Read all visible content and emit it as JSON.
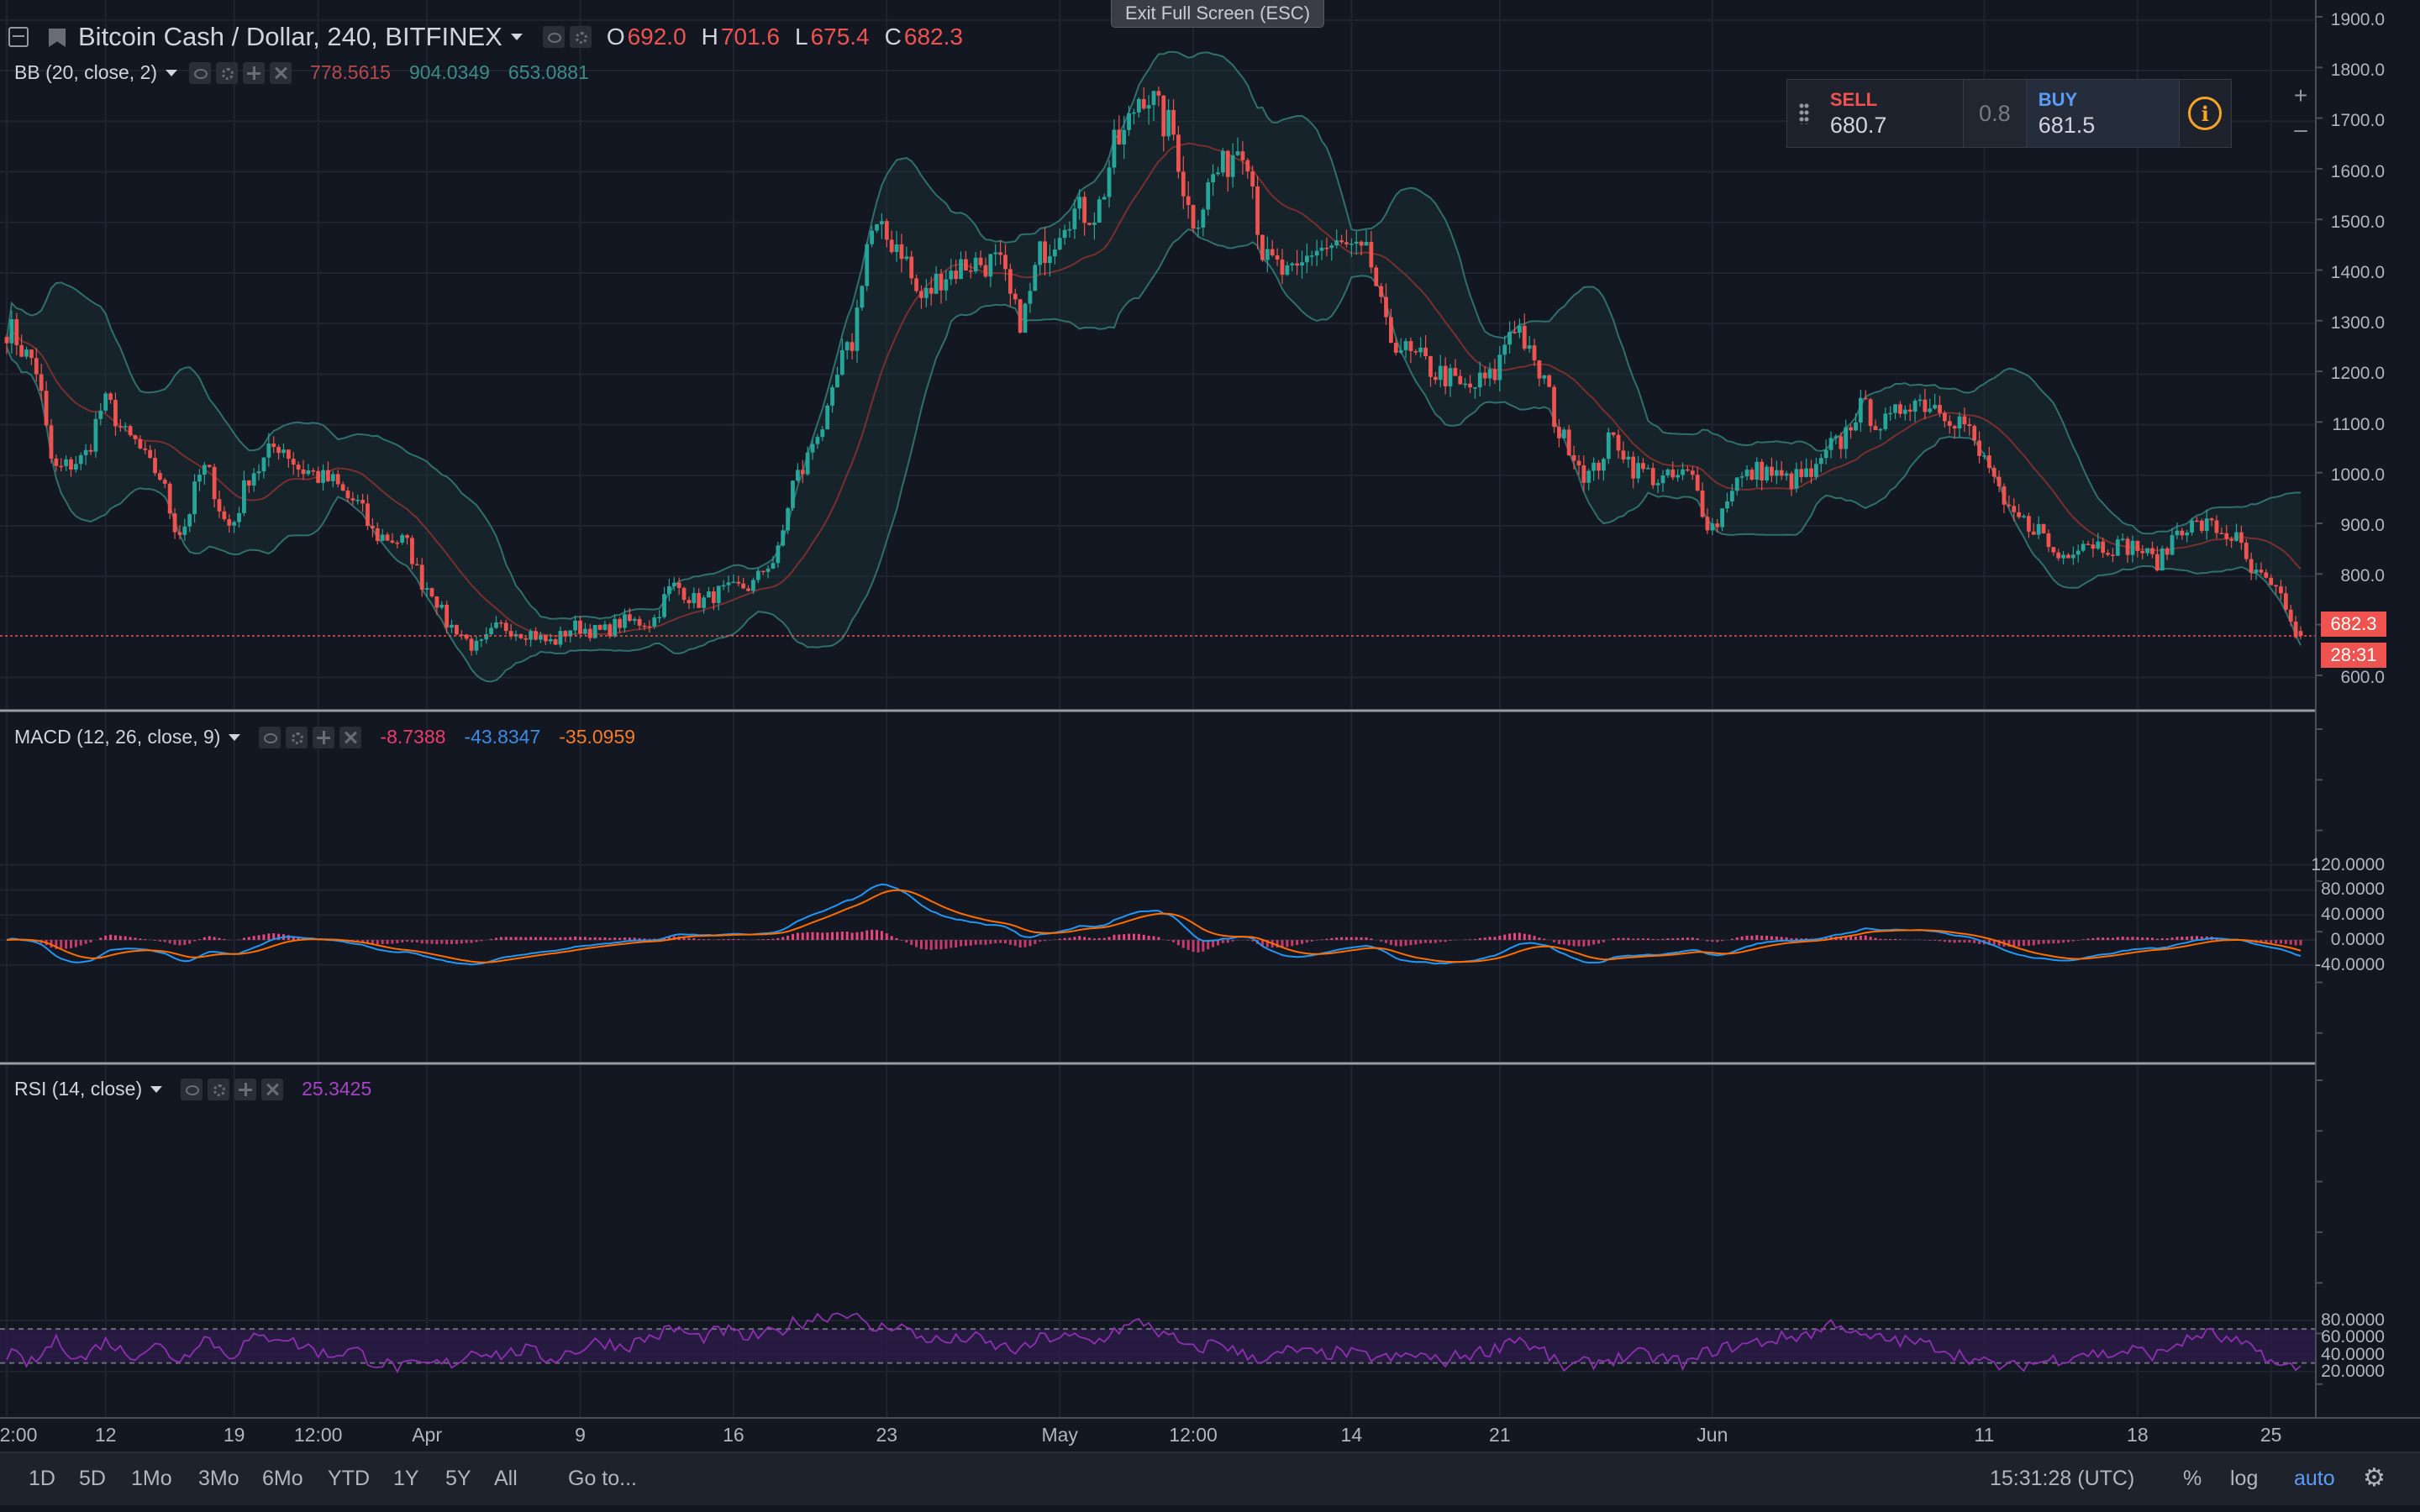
{
  "header": {
    "symbol": "Bitcoin Cash / Dollar, 240, BITFINEX",
    "open_label": "O",
    "open": "692.0",
    "high_label": "H",
    "high": "701.6",
    "low_label": "L",
    "low": "675.4",
    "close_label": "C",
    "close": "682.3"
  },
  "fullscreen_hint": "Exit Full Screen (ESC)",
  "trade_panel": {
    "sell_label": "SELL",
    "sell_price": "680.7",
    "spread": "0.8",
    "buy_label": "BUY",
    "buy_price": "681.5",
    "info_icon": "info-icon",
    "plus": "+",
    "minus": "–"
  },
  "indicators": {
    "bb": {
      "name": "BB (20, close, 2)",
      "v1": "778.5615",
      "v2": "904.0349",
      "v3": "653.0881"
    },
    "macd": {
      "name": "MACD (12, 26, close, 9)",
      "v1": "-8.7388",
      "v2": "-43.8347",
      "v3": "-35.0959"
    },
    "rsi": {
      "name": "RSI (14, close)",
      "v1": "25.3425"
    }
  },
  "price_axis": [
    "1900.0",
    "1800.0",
    "1700.0",
    "1600.0",
    "1500.0",
    "1400.0",
    "1300.0",
    "1200.0",
    "1100.0",
    "1000.0",
    "900.0",
    "800.0",
    "600.0"
  ],
  "price_axis_values": [
    1900,
    1800,
    1700,
    1600,
    1500,
    1400,
    1300,
    1200,
    1100,
    1000,
    900,
    800,
    600
  ],
  "macd_axis": [
    "120.0000",
    "80.0000",
    "40.0000",
    "0.0000",
    "-40.0000"
  ],
  "macd_axis_values": [
    120,
    80,
    40,
    0,
    -40
  ],
  "rsi_axis": [
    "80.0000",
    "60.0000",
    "40.0000",
    "20.0000"
  ],
  "rsi_axis_values": [
    80,
    60,
    40,
    20
  ],
  "last_price_badge": "682.3",
  "countdown_badge": "28:31",
  "time_axis": [
    {
      "label": "2:00",
      "bar": 0
    },
    {
      "label": "12",
      "bar": 20
    },
    {
      "label": "19",
      "bar": 46
    },
    {
      "label": "12:00",
      "bar": 63
    },
    {
      "label": "Apr",
      "bar": 85
    },
    {
      "label": "9",
      "bar": 116
    },
    {
      "label": "16",
      "bar": 147
    },
    {
      "label": "23",
      "bar": 178
    },
    {
      "label": "May",
      "bar": 213
    },
    {
      "label": "12:00",
      "bar": 240
    },
    {
      "label": "14",
      "bar": 272
    },
    {
      "label": "21",
      "bar": 302
    },
    {
      "label": "Jun",
      "bar": 345
    },
    {
      "label": "11",
      "bar": 400
    },
    {
      "label": "18",
      "bar": 431
    },
    {
      "label": "25",
      "bar": 458
    }
  ],
  "bottom_bar": {
    "ranges": [
      "1D",
      "5D",
      "1Mo",
      "3Mo",
      "6Mo",
      "YTD",
      "1Y",
      "5Y",
      "All"
    ],
    "goto": "Go to...",
    "clock": "15:31:28 (UTC)",
    "percent": "%",
    "log": "log",
    "auto": "auto",
    "settings_icon": "gear-icon"
  },
  "colors": {
    "up": "#26a69a",
    "down": "#ef5350",
    "macd_line": "#2196f3",
    "signal_line": "#ff6d00",
    "rsi_line": "#9c27b0",
    "background": "#131722"
  },
  "chart_data": {
    "type": "candlestick",
    "symbol": "BCHUSD",
    "interval": "240",
    "price_anchors": [
      [
        0,
        1290
      ],
      [
        5,
        1230
      ],
      [
        10,
        1010
      ],
      [
        15,
        1030
      ],
      [
        20,
        1140
      ],
      [
        25,
        1070
      ],
      [
        30,
        1010
      ],
      [
        35,
        890
      ],
      [
        40,
        1010
      ],
      [
        45,
        900
      ],
      [
        50,
        1010
      ],
      [
        55,
        1060
      ],
      [
        60,
        1010
      ],
      [
        65,
        990
      ],
      [
        70,
        950
      ],
      [
        75,
        880
      ],
      [
        80,
        870
      ],
      [
        85,
        780
      ],
      [
        90,
        700
      ],
      [
        95,
        660
      ],
      [
        100,
        700
      ],
      [
        105,
        690
      ],
      [
        110,
        670
      ],
      [
        115,
        700
      ],
      [
        120,
        690
      ],
      [
        125,
        710
      ],
      [
        130,
        710
      ],
      [
        135,
        780
      ],
      [
        140,
        750
      ],
      [
        145,
        770
      ],
      [
        150,
        780
      ],
      [
        155,
        830
      ],
      [
        160,
        1000
      ],
      [
        165,
        1100
      ],
      [
        170,
        1240
      ],
      [
        175,
        1480
      ],
      [
        180,
        1460
      ],
      [
        185,
        1350
      ],
      [
        190,
        1400
      ],
      [
        195,
        1420
      ],
      [
        200,
        1420
      ],
      [
        205,
        1310
      ],
      [
        210,
        1450
      ],
      [
        215,
        1520
      ],
      [
        220,
        1520
      ],
      [
        225,
        1660
      ],
      [
        230,
        1760
      ],
      [
        235,
        1690
      ],
      [
        240,
        1510
      ],
      [
        245,
        1600
      ],
      [
        250,
        1660
      ],
      [
        255,
        1420
      ],
      [
        260,
        1390
      ],
      [
        265,
        1450
      ],
      [
        270,
        1450
      ],
      [
        275,
        1430
      ],
      [
        280,
        1270
      ],
      [
        285,
        1230
      ],
      [
        290,
        1200
      ],
      [
        295,
        1170
      ],
      [
        300,
        1190
      ],
      [
        305,
        1300
      ],
      [
        310,
        1200
      ],
      [
        315,
        1070
      ],
      [
        320,
        1000
      ],
      [
        325,
        1070
      ],
      [
        330,
        1010
      ],
      [
        335,
        990
      ],
      [
        340,
        1000
      ],
      [
        345,
        900
      ],
      [
        350,
        990
      ],
      [
        355,
        1010
      ],
      [
        360,
        990
      ],
      [
        365,
        1000
      ],
      [
        370,
        1060
      ],
      [
        375,
        1130
      ],
      [
        380,
        1100
      ],
      [
        385,
        1150
      ],
      [
        390,
        1140
      ],
      [
        395,
        1110
      ],
      [
        400,
        1030
      ],
      [
        405,
        920
      ],
      [
        410,
        900
      ],
      [
        415,
        840
      ],
      [
        420,
        870
      ],
      [
        425,
        860
      ],
      [
        430,
        860
      ],
      [
        435,
        830
      ],
      [
        440,
        900
      ],
      [
        445,
        900
      ],
      [
        450,
        880
      ],
      [
        455,
        800
      ],
      [
        460,
        760
      ],
      [
        463,
        685
      ]
    ],
    "rsi_anchors": [
      [
        0,
        40
      ],
      [
        5,
        30
      ],
      [
        10,
        55
      ],
      [
        15,
        35
      ],
      [
        20,
        55
      ],
      [
        25,
        40
      ],
      [
        30,
        50
      ],
      [
        35,
        35
      ],
      [
        40,
        60
      ],
      [
        45,
        40
      ],
      [
        50,
        58
      ],
      [
        55,
        62
      ],
      [
        60,
        50
      ],
      [
        65,
        40
      ],
      [
        70,
        45
      ],
      [
        75,
        30
      ],
      [
        80,
        25
      ],
      [
        85,
        28
      ],
      [
        90,
        30
      ],
      [
        95,
        45
      ],
      [
        100,
        40
      ],
      [
        105,
        45
      ],
      [
        110,
        35
      ],
      [
        115,
        45
      ],
      [
        120,
        55
      ],
      [
        125,
        50
      ],
      [
        130,
        60
      ],
      [
        135,
        70
      ],
      [
        140,
        60
      ],
      [
        145,
        68
      ],
      [
        150,
        60
      ],
      [
        155,
        65
      ],
      [
        160,
        78
      ],
      [
        165,
        85
      ],
      [
        170,
        90
      ],
      [
        175,
        70
      ],
      [
        180,
        75
      ],
      [
        185,
        60
      ],
      [
        190,
        55
      ],
      [
        195,
        60
      ],
      [
        200,
        50
      ],
      [
        205,
        45
      ],
      [
        210,
        60
      ],
      [
        215,
        60
      ],
      [
        220,
        55
      ],
      [
        225,
        70
      ],
      [
        230,
        78
      ],
      [
        235,
        60
      ],
      [
        240,
        45
      ],
      [
        245,
        55
      ],
      [
        250,
        40
      ],
      [
        255,
        35
      ],
      [
        260,
        45
      ],
      [
        265,
        40
      ],
      [
        270,
        42
      ],
      [
        275,
        38
      ],
      [
        280,
        35
      ],
      [
        285,
        40
      ],
      [
        290,
        32
      ],
      [
        295,
        40
      ],
      [
        300,
        45
      ],
      [
        305,
        60
      ],
      [
        310,
        45
      ],
      [
        315,
        25
      ],
      [
        320,
        30
      ],
      [
        325,
        35
      ],
      [
        330,
        40
      ],
      [
        335,
        35
      ],
      [
        340,
        30
      ],
      [
        345,
        45
      ],
      [
        350,
        50
      ],
      [
        355,
        55
      ],
      [
        360,
        60
      ],
      [
        365,
        65
      ],
      [
        370,
        78
      ],
      [
        375,
        60
      ],
      [
        380,
        58
      ],
      [
        385,
        55
      ],
      [
        390,
        50
      ],
      [
        395,
        40
      ],
      [
        400,
        30
      ],
      [
        405,
        25
      ],
      [
        410,
        30
      ],
      [
        415,
        35
      ],
      [
        420,
        42
      ],
      [
        425,
        40
      ],
      [
        430,
        45
      ],
      [
        435,
        40
      ],
      [
        440,
        55
      ],
      [
        445,
        65
      ],
      [
        450,
        55
      ],
      [
        455,
        45
      ],
      [
        460,
        25
      ],
      [
        463,
        25
      ]
    ],
    "overbought": 70,
    "oversold": 30,
    "last": {
      "open": 692.0,
      "high": 701.6,
      "low": 675.4,
      "close": 682.3
    },
    "bb_last": {
      "basis": 778.5615,
      "upper": 904.0349,
      "lower": 653.0881
    },
    "macd_last": {
      "hist": -8.7388,
      "macd": -43.8347,
      "signal": -35.0959
    },
    "rsi_last": 25.3425
  }
}
